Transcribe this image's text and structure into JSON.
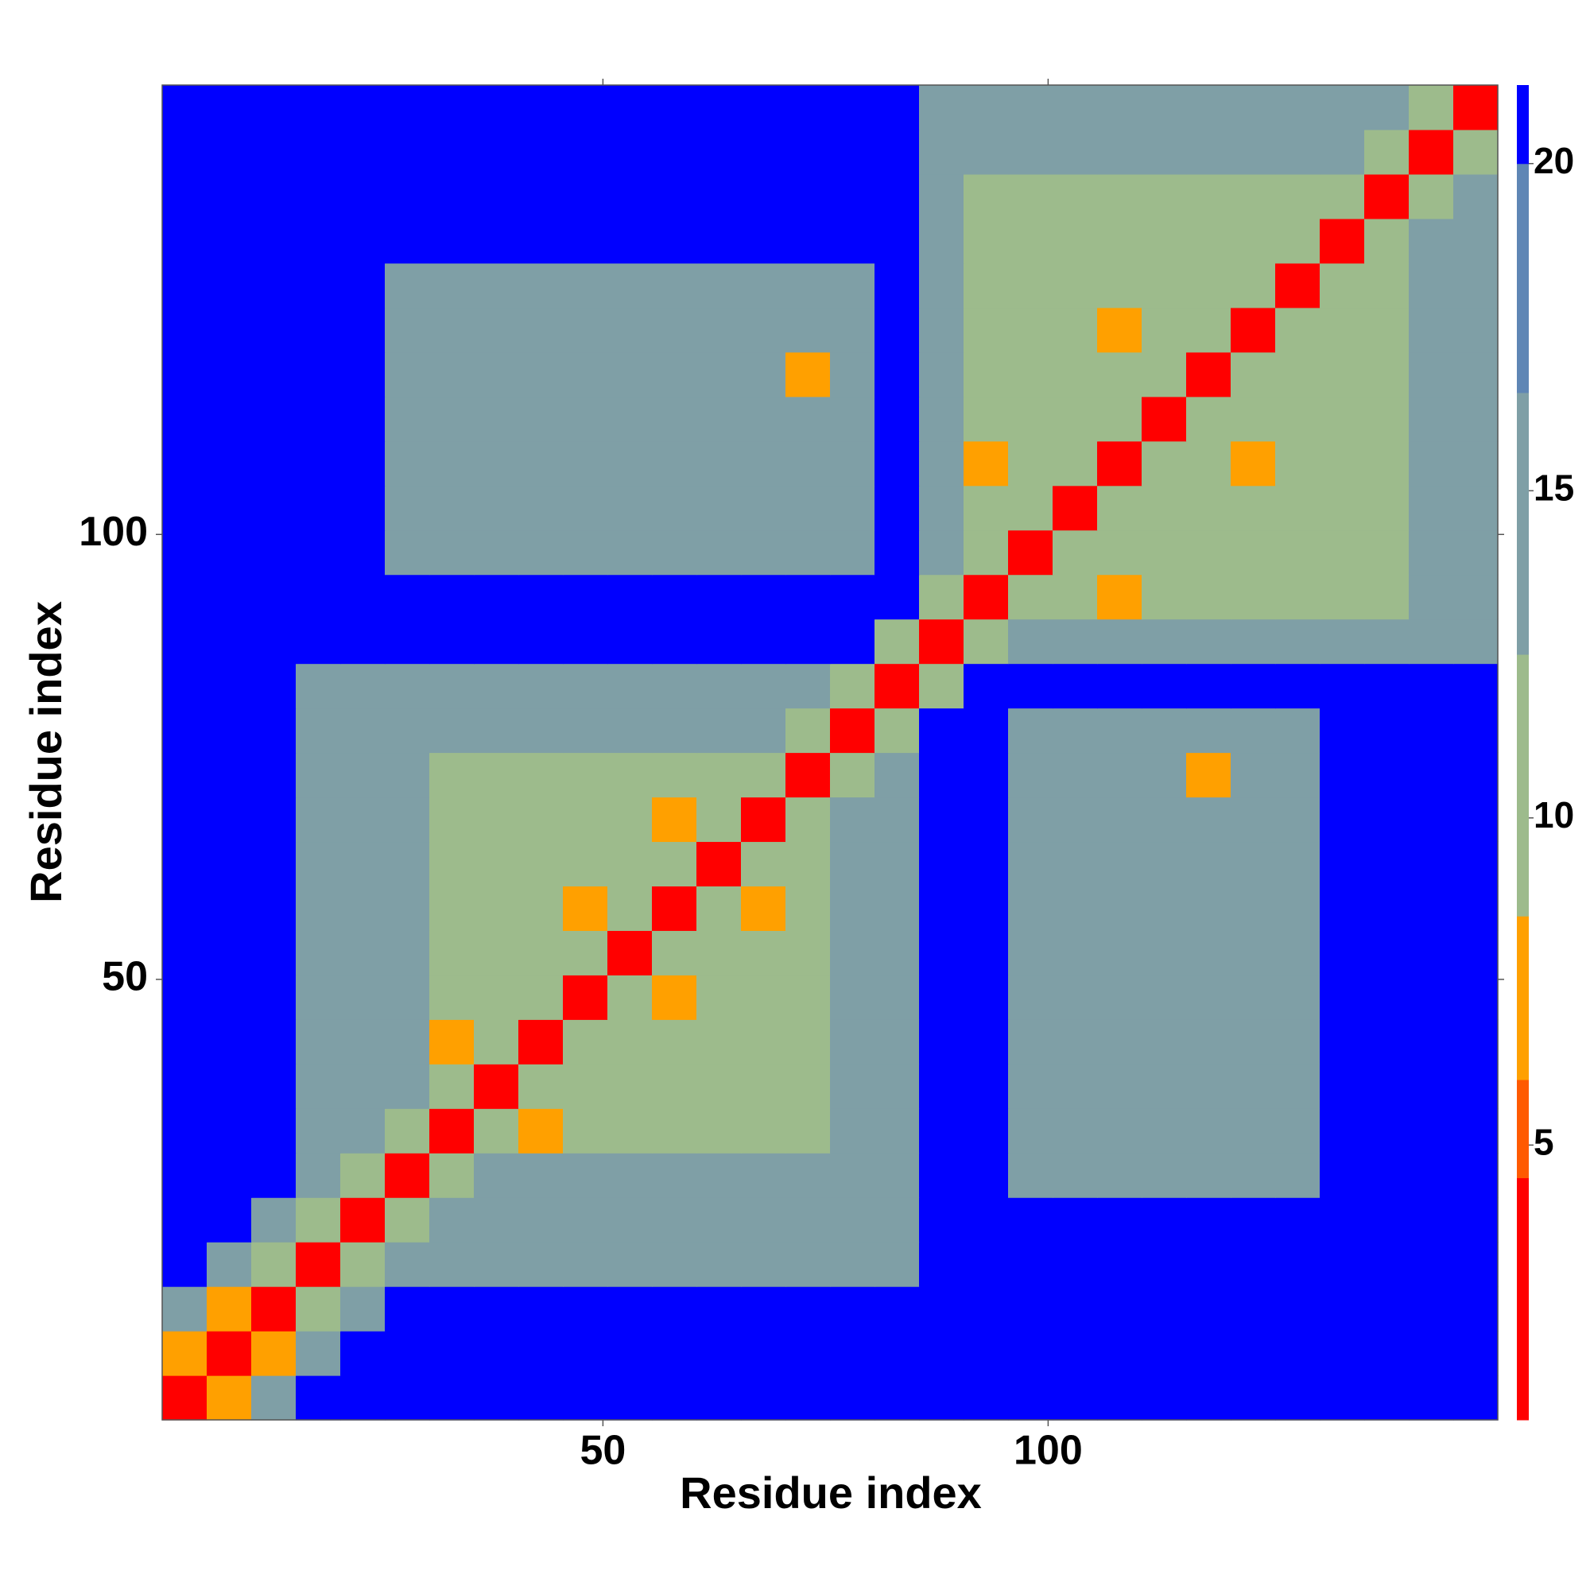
{
  "chart_data": {
    "type": "heatmap",
    "xlabel": "Residue index",
    "ylabel": "Residue index",
    "x_bins": [
      0.5,
      5.5,
      10.5,
      15.5,
      20.5,
      25.5,
      30.5,
      35.5,
      40.5,
      45.5,
      50.5,
      55.5,
      60.5,
      65.5,
      70.5,
      75.5,
      80.5,
      85.5,
      90.5,
      95.5,
      100.5,
      105.5,
      110.5,
      115.5,
      120.5,
      125.5,
      130.5,
      135.5,
      140.5,
      145.5,
      150.5
    ],
    "y_bins": [
      0.5,
      5.5,
      10.5,
      15.5,
      20.5,
      25.5,
      30.5,
      35.5,
      40.5,
      45.5,
      50.5,
      55.5,
      60.5,
      65.5,
      70.5,
      75.5,
      80.5,
      85.5,
      90.5,
      95.5,
      100.5,
      105.5,
      110.5,
      115.5,
      120.5,
      125.5,
      130.5,
      135.5,
      140.5,
      145.5,
      150.5
    ],
    "xlim": [
      0.5,
      150.5
    ],
    "ylim": [
      0.5,
      150.5
    ],
    "xticks": [
      50,
      100
    ],
    "yticks": [
      50,
      100
    ],
    "zlim": [
      0.8,
      21.2
    ],
    "zticks": [
      5,
      10,
      15,
      20
    ],
    "colorscale": [
      {
        "to": 4.5,
        "color": "#ff0000"
      },
      {
        "to": 6,
        "color": "#ff5a00"
      },
      {
        "to": 8.5,
        "color": "#ffa000"
      },
      {
        "to": 12.5,
        "color": "#9dbb8c"
      },
      {
        "to": 16.5,
        "color": "#7f9fa6"
      },
      {
        "to": 20,
        "color": "#5f86b5"
      },
      {
        "to": 21.2,
        "color": "#0000ff"
      }
    ],
    "z": [
      [
        4,
        7,
        16,
        21,
        21,
        21,
        21,
        21,
        21,
        21,
        21,
        21,
        21,
        21,
        21,
        21,
        21,
        21,
        21,
        21,
        21,
        21,
        21,
        21,
        21,
        21,
        21,
        21,
        21,
        21
      ],
      [
        7,
        4,
        7,
        16,
        21,
        21,
        21,
        21,
        21,
        21,
        21,
        21,
        21,
        21,
        21,
        21,
        21,
        21,
        21,
        21,
        21,
        21,
        21,
        21,
        21,
        21,
        21,
        21,
        21,
        21
      ],
      [
        16,
        7,
        4,
        11,
        16,
        21,
        21,
        21,
        21,
        21,
        21,
        21,
        21,
        21,
        21,
        21,
        21,
        21,
        21,
        21,
        21,
        21,
        21,
        21,
        21,
        21,
        21,
        21,
        21,
        21
      ],
      [
        21,
        16,
        11,
        4,
        11,
        16,
        16,
        16,
        16,
        16,
        16,
        16,
        16,
        16,
        16,
        16,
        16,
        21,
        21,
        21,
        21,
        21,
        21,
        21,
        21,
        21,
        21,
        21,
        21,
        21
      ],
      [
        21,
        21,
        16,
        11,
        4,
        11,
        16,
        16,
        16,
        16,
        16,
        16,
        16,
        16,
        16,
        16,
        16,
        21,
        21,
        21,
        21,
        21,
        21,
        21,
        21,
        21,
        21,
        21,
        21,
        21
      ],
      [
        21,
        21,
        21,
        16,
        11,
        4,
        11,
        16,
        16,
        16,
        16,
        16,
        16,
        16,
        16,
        16,
        16,
        21,
        21,
        16,
        16,
        16,
        16,
        16,
        16,
        16,
        21,
        21,
        21,
        21
      ],
      [
        21,
        21,
        21,
        16,
        16,
        11,
        4,
        11,
        7,
        11,
        11,
        11,
        11,
        11,
        11,
        16,
        16,
        21,
        21,
        16,
        16,
        16,
        16,
        16,
        16,
        16,
        21,
        21,
        21,
        21
      ],
      [
        21,
        21,
        21,
        16,
        16,
        16,
        11,
        4,
        11,
        11,
        11,
        11,
        11,
        11,
        11,
        16,
        16,
        21,
        21,
        16,
        16,
        16,
        16,
        16,
        16,
        16,
        21,
        21,
        21,
        21
      ],
      [
        21,
        21,
        21,
        16,
        16,
        16,
        7,
        11,
        4,
        11,
        11,
        11,
        11,
        11,
        11,
        16,
        16,
        21,
        21,
        16,
        16,
        16,
        16,
        16,
        16,
        16,
        21,
        21,
        21,
        21
      ],
      [
        21,
        21,
        21,
        16,
        16,
        16,
        11,
        11,
        11,
        4,
        11,
        7,
        11,
        11,
        11,
        16,
        16,
        21,
        21,
        16,
        16,
        16,
        16,
        16,
        16,
        16,
        21,
        21,
        21,
        21
      ],
      [
        21,
        21,
        21,
        16,
        16,
        16,
        11,
        11,
        11,
        11,
        4,
        11,
        11,
        11,
        11,
        16,
        16,
        21,
        21,
        16,
        16,
        16,
        16,
        16,
        16,
        16,
        21,
        21,
        21,
        21
      ],
      [
        21,
        21,
        21,
        16,
        16,
        16,
        11,
        11,
        11,
        7,
        11,
        4,
        11,
        7,
        11,
        16,
        16,
        21,
        21,
        16,
        16,
        16,
        16,
        16,
        16,
        16,
        21,
        21,
        21,
        21
      ],
      [
        21,
        21,
        21,
        16,
        16,
        16,
        11,
        11,
        11,
        11,
        11,
        11,
        4,
        11,
        11,
        16,
        16,
        21,
        21,
        16,
        16,
        16,
        16,
        16,
        16,
        16,
        21,
        21,
        21,
        21
      ],
      [
        21,
        21,
        21,
        16,
        16,
        16,
        11,
        11,
        11,
        11,
        11,
        7,
        11,
        4,
        11,
        16,
        16,
        21,
        21,
        16,
        16,
        16,
        16,
        16,
        16,
        16,
        21,
        21,
        21,
        21
      ],
      [
        21,
        21,
        21,
        16,
        16,
        16,
        11,
        11,
        11,
        11,
        11,
        11,
        11,
        11,
        4,
        11,
        16,
        21,
        21,
        16,
        16,
        16,
        16,
        7,
        16,
        16,
        21,
        21,
        21,
        21
      ],
      [
        21,
        21,
        21,
        16,
        16,
        16,
        16,
        16,
        16,
        16,
        16,
        16,
        16,
        16,
        11,
        4,
        11,
        21,
        21,
        16,
        16,
        16,
        16,
        16,
        16,
        16,
        21,
        21,
        21,
        21
      ],
      [
        21,
        21,
        21,
        16,
        16,
        16,
        16,
        16,
        16,
        16,
        16,
        16,
        16,
        16,
        16,
        11,
        4,
        11,
        21,
        21,
        21,
        21,
        21,
        21,
        21,
        21,
        21,
        21,
        21,
        21
      ],
      [
        21,
        21,
        21,
        21,
        21,
        21,
        21,
        21,
        21,
        21,
        21,
        21,
        21,
        21,
        21,
        21,
        11,
        4,
        11,
        16,
        16,
        16,
        16,
        16,
        16,
        16,
        16,
        16,
        16,
        16
      ],
      [
        21,
        21,
        21,
        21,
        21,
        21,
        21,
        21,
        21,
        21,
        21,
        21,
        21,
        21,
        21,
        21,
        21,
        11,
        4,
        11,
        11,
        7,
        11,
        11,
        11,
        11,
        11,
        11,
        16,
        16
      ],
      [
        21,
        21,
        21,
        21,
        21,
        16,
        16,
        16,
        16,
        16,
        16,
        16,
        16,
        16,
        16,
        16,
        21,
        16,
        11,
        4,
        11,
        11,
        11,
        11,
        11,
        11,
        11,
        11,
        16,
        16
      ],
      [
        21,
        21,
        21,
        21,
        21,
        16,
        16,
        16,
        16,
        16,
        16,
        16,
        16,
        16,
        16,
        16,
        21,
        16,
        11,
        11,
        4,
        11,
        11,
        11,
        11,
        11,
        11,
        11,
        16,
        16
      ],
      [
        21,
        21,
        21,
        21,
        21,
        16,
        16,
        16,
        16,
        16,
        16,
        16,
        16,
        16,
        16,
        16,
        21,
        16,
        7,
        11,
        11,
        4,
        11,
        11,
        7,
        11,
        11,
        11,
        16,
        16
      ],
      [
        21,
        21,
        21,
        21,
        21,
        16,
        16,
        16,
        16,
        16,
        16,
        16,
        16,
        16,
        16,
        16,
        21,
        16,
        11,
        11,
        11,
        11,
        4,
        11,
        11,
        11,
        11,
        11,
        16,
        16
      ],
      [
        21,
        21,
        21,
        21,
        21,
        16,
        16,
        16,
        16,
        16,
        16,
        16,
        16,
        16,
        7,
        16,
        21,
        16,
        11,
        11,
        11,
        11,
        11,
        4,
        11,
        11,
        11,
        11,
        16,
        16
      ],
      [
        21,
        21,
        21,
        21,
        21,
        16,
        16,
        16,
        16,
        16,
        16,
        16,
        16,
        16,
        16,
        16,
        21,
        16,
        11,
        11,
        11,
        7,
        11,
        11,
        4,
        11,
        11,
        11,
        16,
        16
      ],
      [
        21,
        21,
        21,
        21,
        21,
        16,
        16,
        16,
        16,
        16,
        16,
        16,
        16,
        16,
        16,
        16,
        21,
        16,
        11,
        11,
        11,
        11,
        11,
        11,
        11,
        4,
        11,
        11,
        16,
        16
      ],
      [
        21,
        21,
        21,
        21,
        21,
        21,
        21,
        21,
        21,
        21,
        21,
        21,
        21,
        21,
        21,
        21,
        21,
        16,
        11,
        11,
        11,
        11,
        11,
        11,
        11,
        11,
        4,
        11,
        16,
        16
      ],
      [
        21,
        21,
        21,
        21,
        21,
        21,
        21,
        21,
        21,
        21,
        21,
        21,
        21,
        21,
        21,
        21,
        21,
        16,
        11,
        11,
        11,
        11,
        11,
        11,
        11,
        11,
        11,
        4,
        11,
        16
      ],
      [
        21,
        21,
        21,
        21,
        21,
        21,
        21,
        21,
        21,
        21,
        21,
        21,
        21,
        21,
        21,
        21,
        21,
        16,
        16,
        16,
        16,
        16,
        16,
        16,
        16,
        16,
        16,
        11,
        4,
        11
      ],
      [
        21,
        21,
        21,
        21,
        21,
        21,
        21,
        21,
        21,
        21,
        21,
        21,
        21,
        21,
        21,
        21,
        21,
        16,
        16,
        16,
        16,
        16,
        16,
        16,
        16,
        16,
        16,
        16,
        11,
        4
      ]
    ]
  }
}
